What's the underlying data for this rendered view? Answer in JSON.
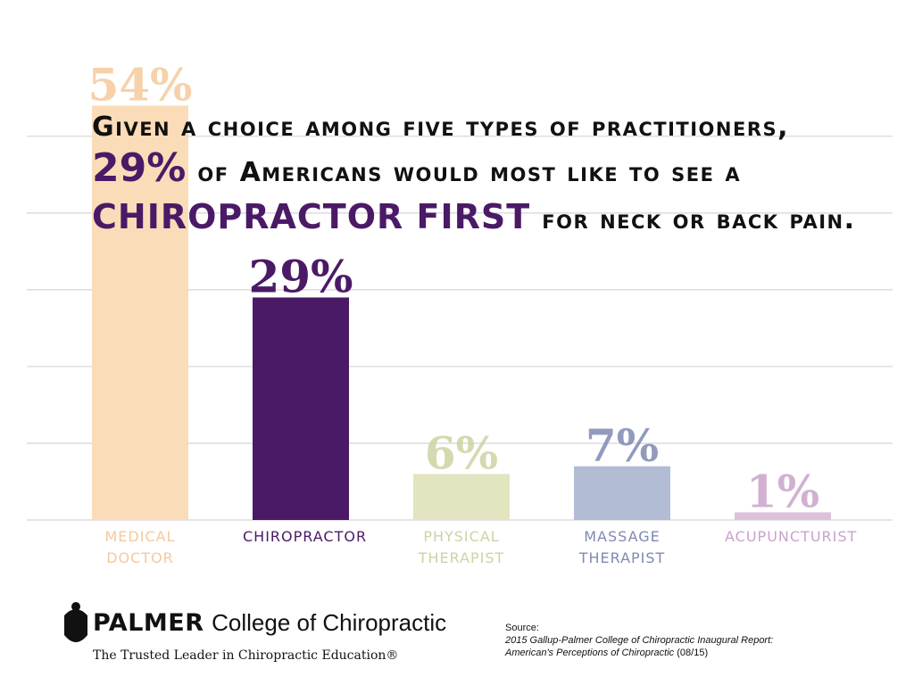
{
  "chart_data": {
    "type": "bar",
    "title": [
      "Given a choice among five types of practitioners,",
      "29%",
      "of Americans would most like to see a",
      "CHIROPRACTOR FIRST",
      "for neck or back pain."
    ],
    "categories": [
      "MEDICAL DOCTOR",
      "CHIROPRACTOR",
      "PHYSICAL THERAPIST",
      "MASSAGE THERAPIST",
      "ACUPUNCTURIST"
    ],
    "values": [
      54,
      29,
      6,
      7,
      1
    ],
    "value_labels": [
      "54%",
      "29%",
      "6%",
      "7%",
      "1%"
    ],
    "colors": [
      "#fbdcb8",
      "#4a1a66",
      "#e3e5c0",
      "#b3bcd5",
      "#dcc1dc"
    ],
    "label_colors": [
      "#f5c99c",
      "#4a1a66",
      "#cfd2a3",
      "#7f8ab2",
      "#c9a3c9"
    ],
    "ylim": [
      0,
      58
    ],
    "yticks": [
      0,
      10,
      20,
      30,
      40,
      50
    ],
    "grid": true
  },
  "footer": {
    "logo": "PALMER",
    "logo_rest": "College of Chiropractic",
    "tagline": "The Trusted Leader in Chiropractic Education®",
    "source_heading": "Source:",
    "source_line1": "2015 Gallup-Palmer College of Chiropractic Inaugural Report:",
    "source_line2": "American's Perceptions of Chiropractic",
    "source_date": "(08/15)"
  }
}
